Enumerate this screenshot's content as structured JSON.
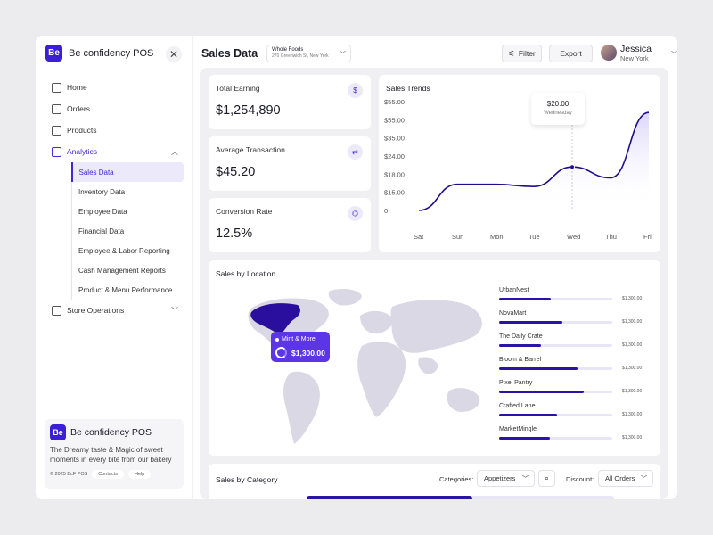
{
  "sidebar": {
    "brand": {
      "logo": "Be",
      "name": "Be confidency POS"
    },
    "nav": [
      {
        "label": "Home",
        "icon": "home-icon"
      },
      {
        "label": "Orders",
        "icon": "bag-icon"
      },
      {
        "label": "Products",
        "icon": "hand-icon"
      },
      {
        "label": "Analytics",
        "icon": "chart-icon"
      }
    ],
    "analytics_sub": [
      "Sales Data",
      "Inventory Data",
      "Employee Data",
      "Financial Data",
      "Employee & Labor Reporting",
      "Cash Management Reports",
      "Product & Menu Performance"
    ],
    "store_ops": {
      "label": "Store Operations",
      "icon": "store-icon"
    },
    "promo": {
      "logo": "Be",
      "name": "Be confidency POS",
      "text": "The Dreamy taste & Magic of sweet moments in every bite from our bakery",
      "copyright": "© 2025 BcF POS",
      "contacts": "Contacts",
      "help": "Help"
    }
  },
  "header": {
    "title": "Sales Data",
    "store_name": "Whole Foods",
    "store_address": "270 Greenwich St, New York",
    "filter_label": "Filter",
    "export_label": "Export",
    "user_name": "Jessica",
    "user_location": "New York"
  },
  "kpis": [
    {
      "label": "Total Earning",
      "value": "$1,254,890",
      "icon": "money-bag-icon"
    },
    {
      "label": "Average Transaction",
      "value": "$45.20",
      "icon": "transaction-icon"
    },
    {
      "label": "Conversion Rate",
      "value": "12.5%",
      "icon": "network-icon"
    }
  ],
  "trends": {
    "title": "Sales Trends",
    "tooltip_value": "$20.00",
    "tooltip_day": "Wednesday",
    "chart_data": {
      "type": "line",
      "x": [
        "Sat",
        "Sun",
        "Mon",
        "Tue",
        "Wed",
        "Thu",
        "Fri"
      ],
      "y_ticks": [
        "$55.00",
        "$55.00",
        "$35.00",
        "$24.00",
        "$18.00",
        "$15.00",
        "0"
      ],
      "values": [
        0,
        12,
        12,
        11,
        20,
        15,
        45
      ]
    }
  },
  "location": {
    "title": "Sales by Location",
    "tooltip_name": "Mint & More",
    "tooltip_value": "$1,300.00",
    "rows": [
      {
        "name": "UrbanNest",
        "value": "$1,300.00",
        "fill": 0.46
      },
      {
        "name": "NovaMart",
        "value": "$1,300.00",
        "fill": 0.56
      },
      {
        "name": "The Daily Crate",
        "value": "$1,300.00",
        "fill": 0.37
      },
      {
        "name": "Bloom & Barrel",
        "value": "$1,300.00",
        "fill": 0.69
      },
      {
        "name": "Pixel Pantry",
        "value": "$1,300.00",
        "fill": 0.75
      },
      {
        "name": "Crafted Lane",
        "value": "$1,300.00",
        "fill": 0.51
      },
      {
        "name": "MarketMingle",
        "value": "$1,300.00",
        "fill": 0.45
      }
    ]
  },
  "category": {
    "title": "Sales by Category",
    "categories_label": "Categories:",
    "categories_value": "Appetizers",
    "discount_label": "Discount:",
    "discount_value": "All Orders",
    "bar_fill": 0.54
  }
}
